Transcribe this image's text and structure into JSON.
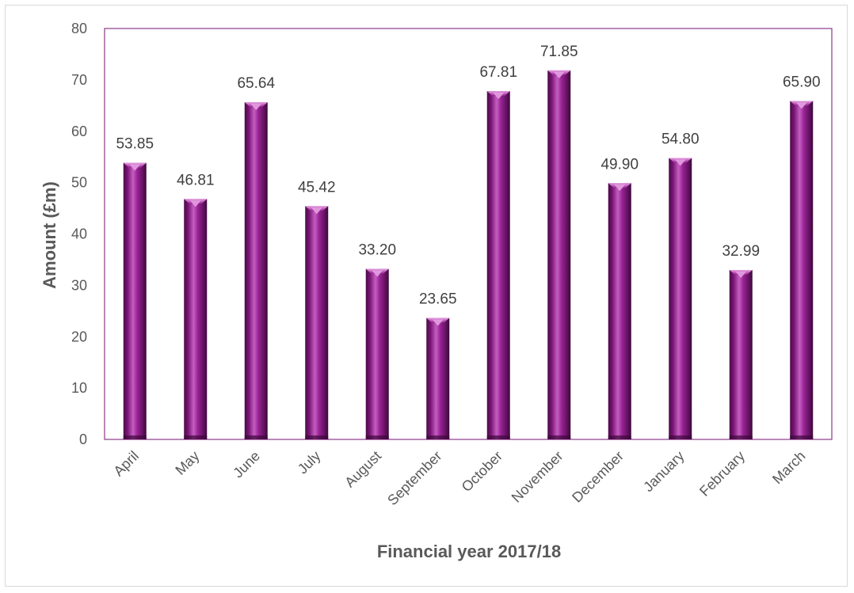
{
  "chart_data": {
    "type": "bar",
    "categories": [
      "April",
      "May",
      "June",
      "July",
      "August",
      "September",
      "October",
      "November",
      "December",
      "January",
      "February",
      "March"
    ],
    "values": [
      53.85,
      46.81,
      65.64,
      45.42,
      33.2,
      23.65,
      67.81,
      71.85,
      49.9,
      54.8,
      32.99,
      65.9
    ],
    "data_labels": [
      "53.85",
      "46.81",
      "65.64",
      "45.42",
      "33.20",
      "23.65",
      "67.81",
      "71.85",
      "49.90",
      "54.80",
      "32.99",
      "65.90"
    ],
    "xlabel": "Financial year 2017/18",
    "ylabel": "Amount (£m)",
    "ylim": [
      0,
      80
    ],
    "yticks": [
      "0",
      "10",
      "20",
      "30",
      "40",
      "50",
      "60",
      "70",
      "80"
    ],
    "grid": false,
    "legend": "none",
    "colors": {
      "bar": "#8e1b8a",
      "bar_dark": "#4a0a48",
      "bar_light": "#c45ec0",
      "plot_border": "#8b3a8a"
    }
  }
}
